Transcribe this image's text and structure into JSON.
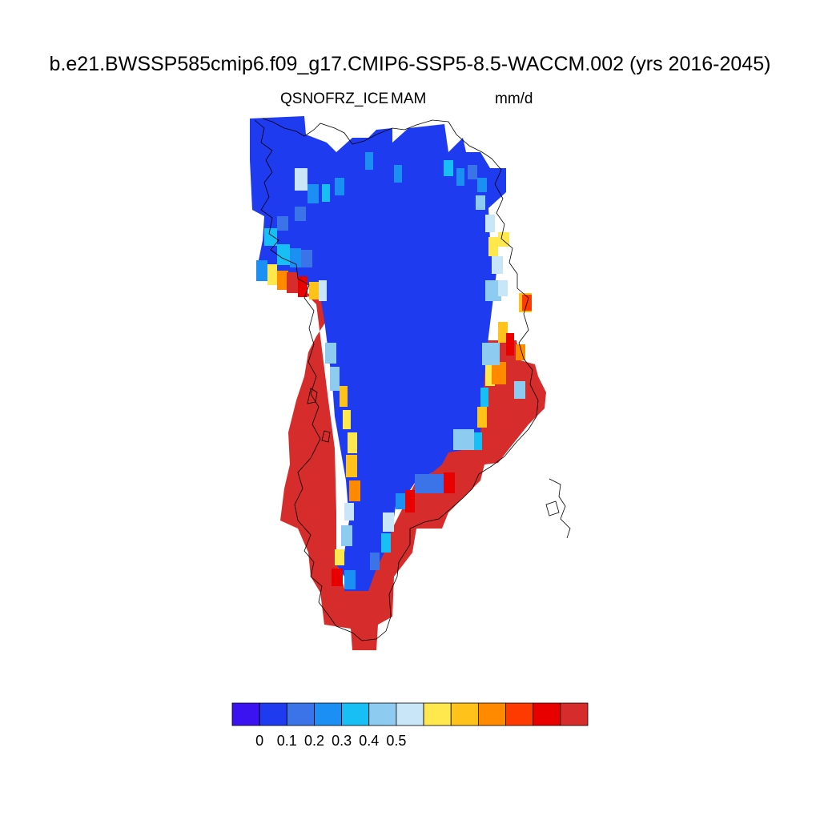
{
  "title": "b.e21.BWSSP585cmip6.f09_g17.CMIP6-SSP5-8.5-WACCM.002 (yrs 2016-2045)",
  "variable": "QSNOFRZ_ICE",
  "season": "MAM",
  "units": "mm/d",
  "colors": {
    "interior": "#1f3bf0",
    "coast": "#d62c2c",
    "coastline": "#000000"
  },
  "colorbar": {
    "colors": [
      "#3a13f0",
      "#1f3bf0",
      "#3a74e8",
      "#1c8ff5",
      "#18bff5",
      "#8ecbf0",
      "#c8e6f8",
      "#ffe84d",
      "#ffc21a",
      "#ff8a00",
      "#ff3a00",
      "#e80000",
      "#d62c2c"
    ],
    "labels": [
      "0",
      "0.1",
      "0.2",
      "0.3",
      "0.4",
      "0.5"
    ]
  },
  "map_data": {
    "region": "Greenland",
    "pattern": "ice-sheet interior near 0 mm/d (dark blue); coastal margins above 0.5 mm/d (red), with transitional yellow/orange/light-blue cells along the ice edge"
  }
}
